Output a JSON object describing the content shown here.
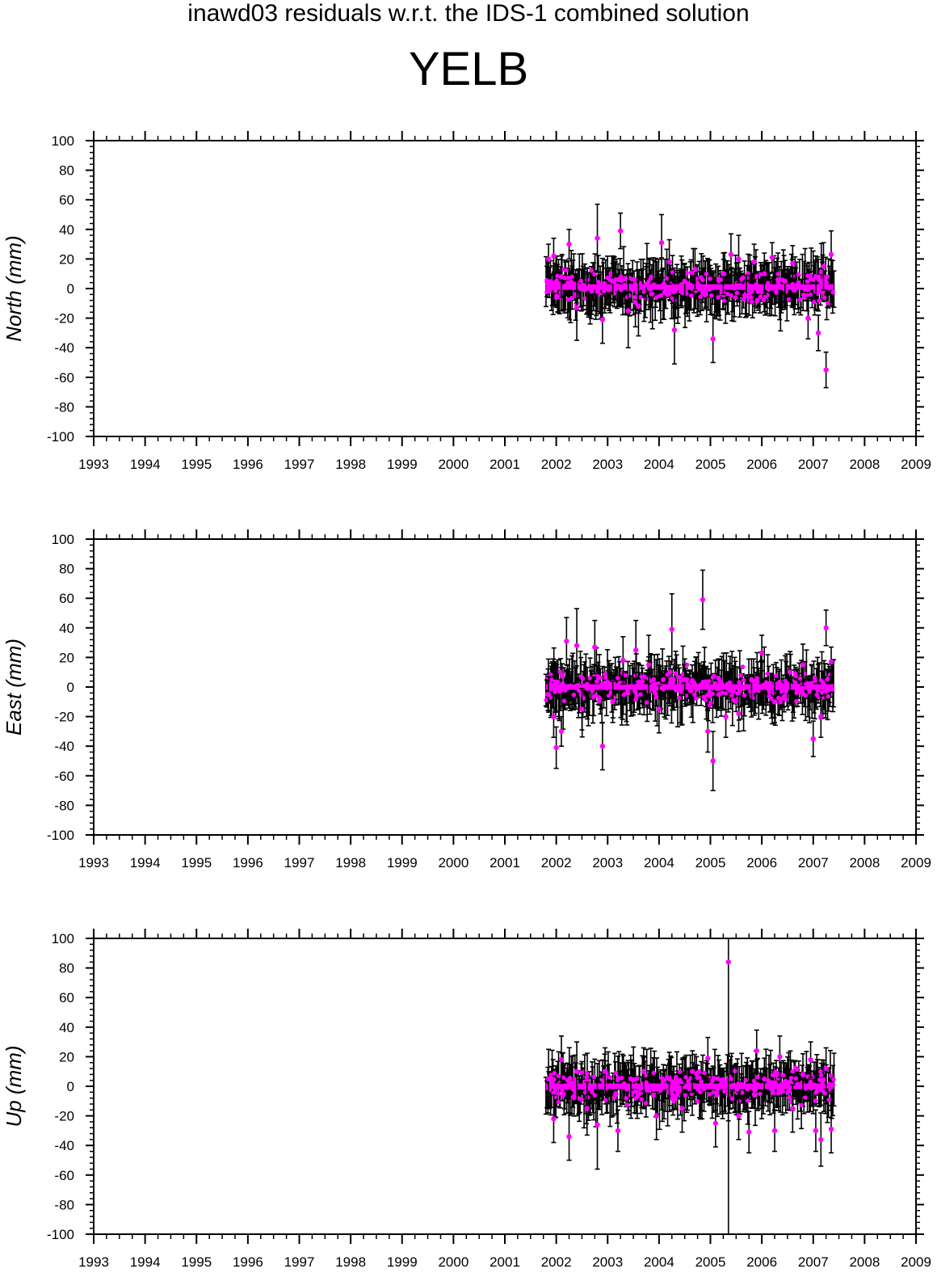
{
  "title": "inawd03 residuals w.r.t. the IDS-1 combined solution",
  "subtitle": "YELB",
  "colors": {
    "points": "#ff00ff",
    "errorbars": "#000000",
    "axes": "#000000"
  },
  "chart_data": [
    {
      "type": "scatter",
      "ylabel": "North (mm)",
      "xlim": [
        1993,
        2009
      ],
      "ylim": [
        -100,
        100
      ],
      "x_ticks": [
        "1993",
        "1994",
        "1995",
        "1996",
        "1997",
        "1998",
        "1999",
        "2000",
        "2001",
        "2002",
        "2003",
        "2004",
        "2005",
        "2006",
        "2007",
        "2008",
        "2009"
      ],
      "y_ticks": [
        "100",
        "80",
        "60",
        "40",
        "20",
        "0",
        "-20",
        "-40",
        "-60",
        "-80",
        "-100"
      ],
      "grid": false,
      "data_range": [
        2001.8,
        2007.4
      ],
      "baseline_y": 1,
      "points": [
        {
          "x": 2001.85,
          "y": 20,
          "err": 10
        },
        {
          "x": 2001.95,
          "y": 22,
          "err": 12
        },
        {
          "x": 2002.1,
          "y": 8,
          "err": 14
        },
        {
          "x": 2002.25,
          "y": 30,
          "err": 10
        },
        {
          "x": 2002.4,
          "y": -13,
          "err": 22
        },
        {
          "x": 2002.6,
          "y": 0,
          "err": 14
        },
        {
          "x": 2002.8,
          "y": 34,
          "err": 23
        },
        {
          "x": 2002.9,
          "y": -21,
          "err": 16
        },
        {
          "x": 2003.1,
          "y": 5,
          "err": 12
        },
        {
          "x": 2003.25,
          "y": 39,
          "err": 12
        },
        {
          "x": 2003.4,
          "y": -15,
          "err": 25
        },
        {
          "x": 2003.6,
          "y": -12,
          "err": 20
        },
        {
          "x": 2003.75,
          "y": 3,
          "err": 14
        },
        {
          "x": 2004.05,
          "y": 31,
          "err": 19
        },
        {
          "x": 2004.2,
          "y": 18,
          "err": 15
        },
        {
          "x": 2004.3,
          "y": -28,
          "err": 23
        },
        {
          "x": 2004.5,
          "y": 5,
          "err": 12
        },
        {
          "x": 2004.7,
          "y": 13,
          "err": 14
        },
        {
          "x": 2005.05,
          "y": -34,
          "err": 16
        },
        {
          "x": 2005.25,
          "y": 10,
          "err": 14
        },
        {
          "x": 2005.4,
          "y": 23,
          "err": 14
        },
        {
          "x": 2005.55,
          "y": 20,
          "err": 16
        },
        {
          "x": 2005.7,
          "y": -5,
          "err": 14
        },
        {
          "x": 2005.85,
          "y": 18,
          "err": 12
        },
        {
          "x": 2006.05,
          "y": 10,
          "err": 14
        },
        {
          "x": 2006.2,
          "y": 21,
          "err": 10
        },
        {
          "x": 2006.45,
          "y": 5,
          "err": 14
        },
        {
          "x": 2006.6,
          "y": 17,
          "err": 12
        },
        {
          "x": 2006.9,
          "y": -20,
          "err": 14
        },
        {
          "x": 2007.05,
          "y": 8,
          "err": 14
        },
        {
          "x": 2007.1,
          "y": -30,
          "err": 12
        },
        {
          "x": 2007.2,
          "y": 15,
          "err": 16
        },
        {
          "x": 2007.25,
          "y": -55,
          "err": 12
        },
        {
          "x": 2007.35,
          "y": 23,
          "err": 16
        }
      ]
    },
    {
      "type": "scatter",
      "ylabel": "East (mm)",
      "xlim": [
        1993,
        2009
      ],
      "ylim": [
        -100,
        100
      ],
      "x_ticks": [
        "1993",
        "1994",
        "1995",
        "1996",
        "1997",
        "1998",
        "1999",
        "2000",
        "2001",
        "2002",
        "2003",
        "2004",
        "2005",
        "2006",
        "2007",
        "2008",
        "2009"
      ],
      "y_ticks": [
        "100",
        "80",
        "60",
        "40",
        "20",
        "0",
        "-20",
        "-40",
        "-60",
        "-80",
        "-100"
      ],
      "grid": false,
      "data_range": [
        2001.8,
        2007.4
      ],
      "baseline_y": 0,
      "points": [
        {
          "x": 2001.85,
          "y": -5,
          "err": 12
        },
        {
          "x": 2001.95,
          "y": -20,
          "err": 14
        },
        {
          "x": 2002.0,
          "y": -41,
          "err": 14
        },
        {
          "x": 2002.1,
          "y": -30,
          "err": 10
        },
        {
          "x": 2002.2,
          "y": 31,
          "err": 16
        },
        {
          "x": 2002.4,
          "y": 28,
          "err": 25
        },
        {
          "x": 2002.5,
          "y": -15,
          "err": 14
        },
        {
          "x": 2002.75,
          "y": 27,
          "err": 18
        },
        {
          "x": 2002.9,
          "y": -40,
          "err": 16
        },
        {
          "x": 2003.1,
          "y": -10,
          "err": 14
        },
        {
          "x": 2003.3,
          "y": 18,
          "err": 16
        },
        {
          "x": 2003.55,
          "y": 25,
          "err": 20
        },
        {
          "x": 2003.8,
          "y": 15,
          "err": 20
        },
        {
          "x": 2004.0,
          "y": -15,
          "err": 16
        },
        {
          "x": 2004.25,
          "y": 39,
          "err": 24
        },
        {
          "x": 2004.5,
          "y": 5,
          "err": 14
        },
        {
          "x": 2004.85,
          "y": 59,
          "err": 20
        },
        {
          "x": 2004.95,
          "y": -30,
          "err": 14
        },
        {
          "x": 2005.05,
          "y": -50,
          "err": 20
        },
        {
          "x": 2005.3,
          "y": -20,
          "err": 14
        },
        {
          "x": 2005.55,
          "y": -18,
          "err": 12
        },
        {
          "x": 2005.8,
          "y": 5,
          "err": 14
        },
        {
          "x": 2006.0,
          "y": 23,
          "err": 12
        },
        {
          "x": 2006.25,
          "y": -10,
          "err": 14
        },
        {
          "x": 2006.55,
          "y": 10,
          "err": 14
        },
        {
          "x": 2006.8,
          "y": 15,
          "err": 14
        },
        {
          "x": 2007.0,
          "y": -35,
          "err": 12
        },
        {
          "x": 2007.15,
          "y": -20,
          "err": 14
        },
        {
          "x": 2007.25,
          "y": 40,
          "err": 12
        },
        {
          "x": 2007.35,
          "y": 17,
          "err": 10
        }
      ]
    },
    {
      "type": "scatter",
      "ylabel": "Up (mm)",
      "xlim": [
        1993,
        2009
      ],
      "ylim": [
        -100,
        100
      ],
      "x_ticks": [
        "1993",
        "1994",
        "1995",
        "1996",
        "1997",
        "1998",
        "1999",
        "2000",
        "2001",
        "2002",
        "2003",
        "2004",
        "2005",
        "2006",
        "2007",
        "2008",
        "2009"
      ],
      "y_ticks": [
        "100",
        "80",
        "60",
        "40",
        "20",
        "0",
        "-20",
        "-40",
        "-60",
        "-80",
        "-100"
      ],
      "grid": false,
      "data_range": [
        2001.8,
        2007.4
      ],
      "baseline_y": 0,
      "points": [
        {
          "x": 2001.85,
          "y": 5,
          "err": 20
        },
        {
          "x": 2001.95,
          "y": -22,
          "err": 16
        },
        {
          "x": 2002.1,
          "y": 18,
          "err": 16
        },
        {
          "x": 2002.25,
          "y": -34,
          "err": 16
        },
        {
          "x": 2002.4,
          "y": 10,
          "err": 20
        },
        {
          "x": 2002.6,
          "y": -15,
          "err": 18
        },
        {
          "x": 2002.8,
          "y": -26,
          "err": 30
        },
        {
          "x": 2002.95,
          "y": 10,
          "err": 16
        },
        {
          "x": 2003.2,
          "y": -30,
          "err": 14
        },
        {
          "x": 2003.45,
          "y": 5,
          "err": 16
        },
        {
          "x": 2003.7,
          "y": 10,
          "err": 16
        },
        {
          "x": 2003.95,
          "y": -20,
          "err": 16
        },
        {
          "x": 2004.2,
          "y": 5,
          "err": 18
        },
        {
          "x": 2004.45,
          "y": -15,
          "err": 16
        },
        {
          "x": 2004.65,
          "y": 10,
          "err": 14
        },
        {
          "x": 2004.95,
          "y": 19,
          "err": 14
        },
        {
          "x": 2005.1,
          "y": -25,
          "err": 16
        },
        {
          "x": 2005.35,
          "y": 84,
          "err": 200
        },
        {
          "x": 2005.55,
          "y": -20,
          "err": 16
        },
        {
          "x": 2005.75,
          "y": -31,
          "err": 14
        },
        {
          "x": 2005.9,
          "y": 24,
          "err": 14
        },
        {
          "x": 2006.05,
          "y": 5,
          "err": 14
        },
        {
          "x": 2006.25,
          "y": -30,
          "err": 14
        },
        {
          "x": 2006.35,
          "y": 20,
          "err": 14
        },
        {
          "x": 2006.6,
          "y": -15,
          "err": 16
        },
        {
          "x": 2006.8,
          "y": 8,
          "err": 14
        },
        {
          "x": 2006.95,
          "y": 18,
          "err": 12
        },
        {
          "x": 2007.05,
          "y": -30,
          "err": 14
        },
        {
          "x": 2007.15,
          "y": -36,
          "err": 18
        },
        {
          "x": 2007.25,
          "y": 12,
          "err": 14
        },
        {
          "x": 2007.35,
          "y": -29,
          "err": 16
        }
      ]
    }
  ]
}
